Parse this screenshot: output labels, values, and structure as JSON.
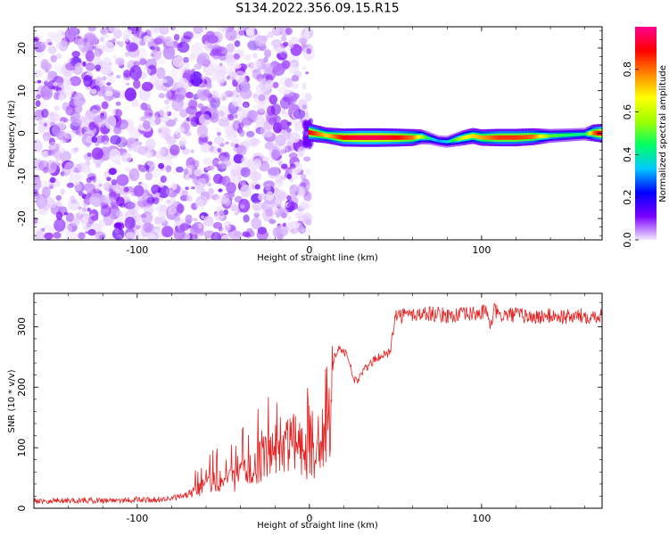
{
  "figure": {
    "title": "S134.2022.356.09.15.R15"
  },
  "chart_data": [
    {
      "type": "heatmap",
      "xlabel": "Height of straight line (km)",
      "ylabel": "Frequency (Hz)",
      "xlim": [
        -160,
        170
      ],
      "ylim": [
        -25,
        25
      ],
      "xticks": [
        -100,
        0,
        100
      ],
      "yticks": [
        -20,
        -10,
        0,
        10,
        20
      ],
      "grid": false,
      "description_series": {
        "noise_region_x": [
          -160,
          0
        ],
        "ridge": {
          "x": [
            0,
            10,
            20,
            30,
            40,
            50,
            60,
            65,
            70,
            75,
            80,
            85,
            90,
            95,
            100,
            105,
            110,
            120,
            130,
            140,
            150,
            160,
            165,
            170
          ],
          "frequency": [
            0.2,
            -0.5,
            -1,
            -1,
            -1,
            -1,
            -1,
            -0.8,
            -1.2,
            -1.8,
            -2,
            -1.5,
            -1,
            -0.6,
            -1,
            -1,
            -1,
            -1,
            -0.8,
            -0.6,
            -0.4,
            -0.2,
            0.1,
            0
          ],
          "amplitude": [
            0.9,
            0.7,
            0.9,
            0.95,
            0.95,
            0.9,
            0.8,
            0.6,
            0.4,
            0.3,
            0.35,
            0.5,
            0.65,
            0.7,
            0.75,
            0.8,
            0.85,
            0.85,
            0.8,
            0.5,
            0.45,
            0.4,
            0.8,
            0.95
          ]
        }
      },
      "colorbar": {
        "label": "Normalized spectral amplitude",
        "range": [
          0,
          1
        ],
        "ticks": [
          "0.0",
          "0.2",
          "0.4",
          "0.6",
          "0.8"
        ],
        "colors": [
          "#f3e8ff",
          "#7a00ff",
          "#0000ff",
          "#00c8ff",
          "#00ff66",
          "#a0ff00",
          "#ffff00",
          "#ff8800",
          "#ff0000",
          "#ff0090"
        ]
      }
    },
    {
      "type": "line",
      "xlabel": "Height of straight line (km)",
      "ylabel": "SNR (10 * v/v)",
      "xlim": [
        -160,
        170
      ],
      "ylim": [
        0,
        355
      ],
      "xticks": [
        -100,
        0,
        100
      ],
      "yticks": [
        0,
        100,
        200,
        300
      ],
      "grid": false,
      "series": [
        {
          "color": "#e62020",
          "x": [
            -160,
            -140,
            -120,
            -100,
            -90,
            -80,
            -70,
            -65,
            -60,
            -55,
            -50,
            -45,
            -40,
            -35,
            -30,
            -25,
            -20,
            -15,
            -10,
            -5,
            0,
            5,
            10,
            13,
            14,
            16,
            18,
            20,
            22,
            24,
            25,
            28,
            30,
            35,
            40,
            45,
            47,
            48,
            50,
            60,
            70,
            80,
            90,
            100,
            103,
            105,
            107,
            110,
            120,
            130,
            140,
            150,
            160,
            170
          ],
          "y": [
            12,
            13,
            13,
            14,
            14,
            16,
            22,
            30,
            40,
            45,
            40,
            48,
            55,
            62,
            75,
            85,
            95,
            100,
            110,
            100,
            80,
            90,
            110,
            140,
            245,
            260,
            265,
            260,
            250,
            235,
            215,
            210,
            222,
            238,
            250,
            255,
            258,
            290,
            318,
            320,
            322,
            318,
            320,
            322,
            330,
            290,
            330,
            318,
            320,
            315,
            318,
            316,
            318,
            318
          ]
        }
      ]
    }
  ]
}
